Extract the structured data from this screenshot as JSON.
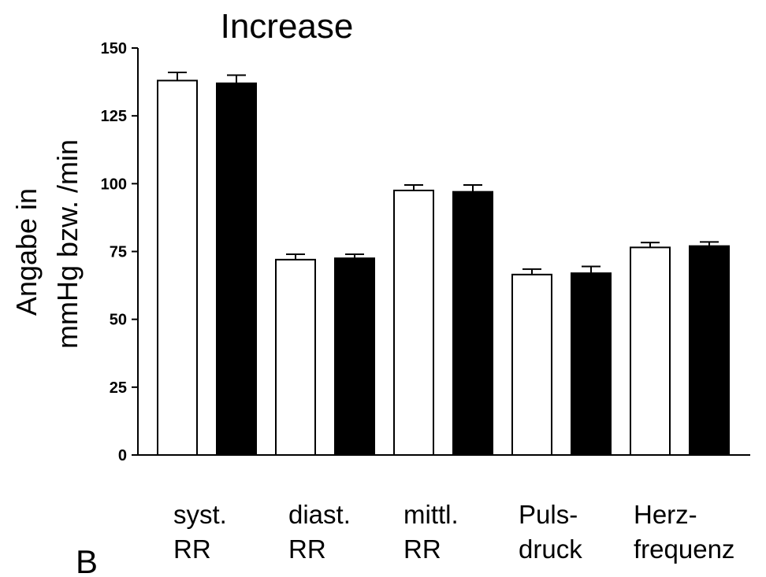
{
  "panel_label": "B",
  "chart_data": {
    "type": "bar",
    "title": "Increase",
    "ylabel_lines": [
      "Angabe in",
      "mmHg bzw. /min"
    ],
    "ylim": [
      0,
      150
    ],
    "yticks": [
      0,
      25,
      50,
      75,
      100,
      125,
      150
    ],
    "categories": [
      {
        "lines": [
          "syst.",
          "RR"
        ]
      },
      {
        "lines": [
          "diast.",
          "RR"
        ]
      },
      {
        "lines": [
          "mittl.",
          "RR"
        ]
      },
      {
        "lines": [
          "Puls-",
          "druck"
        ]
      },
      {
        "lines": [
          "Herz-",
          "frequenz"
        ]
      }
    ],
    "series": [
      {
        "fill": "#ffffff",
        "values": [
          138,
          72,
          97.5,
          66.5,
          76.5
        ],
        "errors": [
          3,
          2,
          2,
          2,
          1.8
        ]
      },
      {
        "fill": "#000000",
        "values": [
          137,
          72.5,
          97,
          67,
          77
        ],
        "errors": [
          3,
          1.5,
          2.5,
          2.5,
          1.5
        ]
      }
    ],
    "grid": false,
    "legend": "none"
  }
}
